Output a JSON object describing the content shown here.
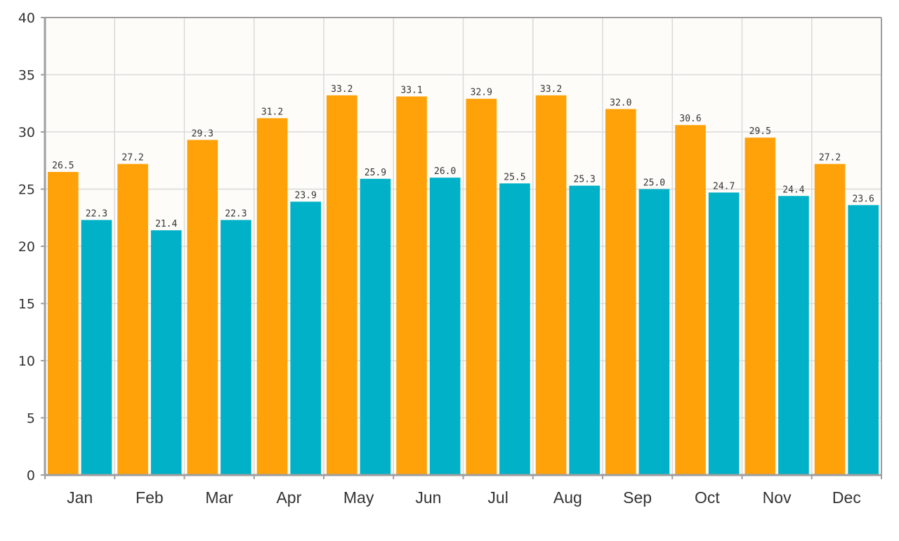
{
  "chart_data": {
    "type": "bar",
    "title": "",
    "xlabel": "",
    "ylabel": "",
    "categories": [
      "Jan",
      "Feb",
      "Mar",
      "Apr",
      "May",
      "Jun",
      "Jul",
      "Aug",
      "Sep",
      "Oct",
      "Nov",
      "Dec"
    ],
    "series": [
      {
        "color": "#ffa20a",
        "values": [
          26.5,
          27.2,
          29.3,
          31.2,
          33.2,
          33.1,
          32.9,
          33.2,
          32.0,
          30.6,
          29.5,
          27.2
        ],
        "labels": [
          "26.5",
          "27.2",
          "29.3",
          "31.2",
          "33.2",
          "33.1",
          "32.9",
          "33.2",
          "32.0",
          "30.6",
          "29.5",
          "27.2"
        ]
      },
      {
        "color": "#00b1c8",
        "values": [
          22.3,
          21.4,
          22.3,
          23.9,
          25.9,
          26.0,
          25.5,
          25.3,
          25.0,
          24.7,
          24.4,
          23.6
        ],
        "labels": [
          "22.3",
          "21.4",
          "22.3",
          "23.9",
          "25.9",
          "26.0",
          "25.5",
          "25.3",
          "25.0",
          "24.7",
          "24.4",
          "23.6"
        ]
      }
    ],
    "ylim": [
      0,
      40
    ],
    "yticks": [
      "0",
      "5",
      "10",
      "15",
      "20",
      "25",
      "30",
      "35",
      "40"
    ],
    "grid": true,
    "legend": "none",
    "plot_background": "#fdfcf8",
    "grid_color": "#d9d9d9",
    "axis_color": "#9e9e9e"
  }
}
